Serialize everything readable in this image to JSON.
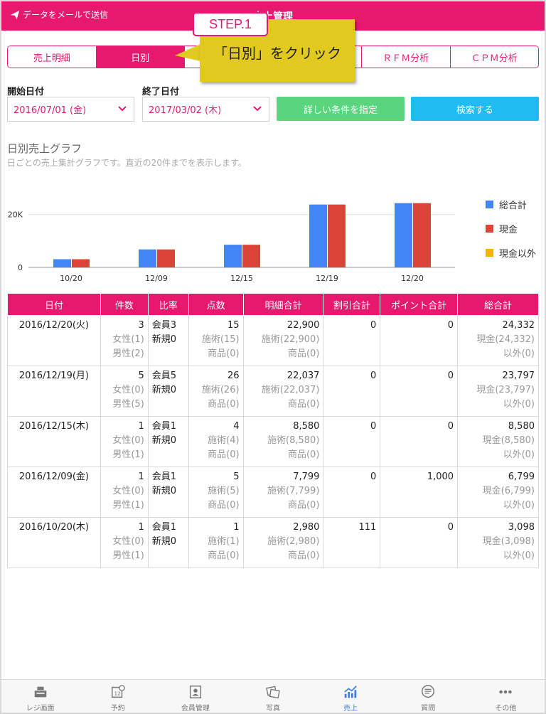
{
  "header": {
    "send_label": "データをメールで送信",
    "title": "売上管理"
  },
  "tabs": [
    {
      "label": "売上明細",
      "active": false
    },
    {
      "label": "日別",
      "active": true
    },
    {
      "label": "",
      "active": false
    },
    {
      "label": "",
      "active": false
    },
    {
      "label": "ＲＦＭ分析",
      "active": false
    },
    {
      "label": "ＣＰＭ分析",
      "active": false
    }
  ],
  "filters": {
    "start_label": "開始日付",
    "start_value": "2016/07/01 (金)",
    "end_label": "終了日付",
    "end_value": "2017/03/02 (木)",
    "detail_button": "詳しい条件を指定",
    "search_button": "検索する"
  },
  "section": {
    "title": "日別売上グラフ",
    "description": "日ごとの売上集計グラフです。直近の20件までを表示します。"
  },
  "colors": {
    "accent": "#e6196e",
    "series_total": "#4285f4",
    "series_cash": "#db4437",
    "series_other": "#f4b400"
  },
  "chart_data": {
    "type": "bar",
    "categories": [
      "10/20",
      "12/09",
      "12/15",
      "12/19",
      "12/20"
    ],
    "series": [
      {
        "name": "総合計",
        "values": [
          3098,
          6799,
          8580,
          23797,
          24332
        ]
      },
      {
        "name": "現金",
        "values": [
          3098,
          6799,
          8580,
          23797,
          24332
        ]
      },
      {
        "name": "現金以外",
        "values": [
          0,
          0,
          0,
          0,
          0
        ]
      }
    ],
    "y_ticks": [
      "0",
      "20K"
    ],
    "ylim": [
      0,
      28000
    ],
    "grid": true,
    "legend": "right"
  },
  "table": {
    "headers": [
      "日付",
      "件数",
      "比率",
      "点数",
      "明細合計",
      "割引合計",
      "ポイント合計",
      "総合計"
    ],
    "rows": [
      {
        "date": "2016/12/20(火)",
        "count": "3",
        "female": "女性(1)",
        "male": "男性(2)",
        "member": "会員3",
        "new": "新規0",
        "points": "15",
        "pt_treat": "施術(15)",
        "pt_goods": "商品(0)",
        "detail": "22,900",
        "dt_treat": "施術(22,900)",
        "dt_goods": "商品(0)",
        "discount": "0",
        "point_total": "0",
        "total": "24,332",
        "cash": "現金(24,332)",
        "other": "以外(0)"
      },
      {
        "date": "2016/12/19(月)",
        "count": "5",
        "female": "女性(0)",
        "male": "男性(5)",
        "member": "会員5",
        "new": "新規0",
        "points": "26",
        "pt_treat": "施術(26)",
        "pt_goods": "商品(0)",
        "detail": "22,037",
        "dt_treat": "施術(22,037)",
        "dt_goods": "商品(0)",
        "discount": "0",
        "point_total": "0",
        "total": "23,797",
        "cash": "現金(23,797)",
        "other": "以外(0)"
      },
      {
        "date": "2016/12/15(木)",
        "count": "1",
        "female": "女性(0)",
        "male": "男性(1)",
        "member": "会員1",
        "new": "新規0",
        "points": "4",
        "pt_treat": "施術(4)",
        "pt_goods": "商品(0)",
        "detail": "8,580",
        "dt_treat": "施術(8,580)",
        "dt_goods": "商品(0)",
        "discount": "0",
        "point_total": "0",
        "total": "8,580",
        "cash": "現金(8,580)",
        "other": "以外(0)"
      },
      {
        "date": "2016/12/09(金)",
        "count": "1",
        "female": "女性(0)",
        "male": "男性(1)",
        "member": "会員1",
        "new": "新規0",
        "points": "5",
        "pt_treat": "施術(5)",
        "pt_goods": "商品(0)",
        "detail": "7,799",
        "dt_treat": "施術(7,799)",
        "dt_goods": "商品(0)",
        "discount": "0",
        "point_total": "1,000",
        "total": "6,799",
        "cash": "現金(6,799)",
        "other": "以外(0)"
      },
      {
        "date": "2016/10/20(木)",
        "count": "1",
        "female": "女性(0)",
        "male": "男性(1)",
        "member": "会員1",
        "new": "新規0",
        "points": "1",
        "pt_treat": "施術(1)",
        "pt_goods": "商品(0)",
        "detail": "2,980",
        "dt_treat": "施術(2,980)",
        "dt_goods": "商品(0)",
        "discount": "111",
        "point_total": "0",
        "total": "3,098",
        "cash": "現金(3,098)",
        "other": "以外(0)"
      }
    ]
  },
  "bottom_nav": [
    {
      "label": "レジ画面",
      "icon": "register-icon",
      "active": false
    },
    {
      "label": "予約",
      "icon": "calendar-icon",
      "active": false
    },
    {
      "label": "会員管理",
      "icon": "member-card-icon",
      "active": false
    },
    {
      "label": "写真",
      "icon": "photo-icon",
      "active": false
    },
    {
      "label": "売上",
      "icon": "sales-chart-icon",
      "active": true
    },
    {
      "label": "質問",
      "icon": "chat-icon",
      "active": false
    },
    {
      "label": "その他",
      "icon": "more-icon",
      "active": false
    }
  ],
  "annotation": {
    "step": "STEP.1",
    "text": "「日別」をクリック"
  }
}
